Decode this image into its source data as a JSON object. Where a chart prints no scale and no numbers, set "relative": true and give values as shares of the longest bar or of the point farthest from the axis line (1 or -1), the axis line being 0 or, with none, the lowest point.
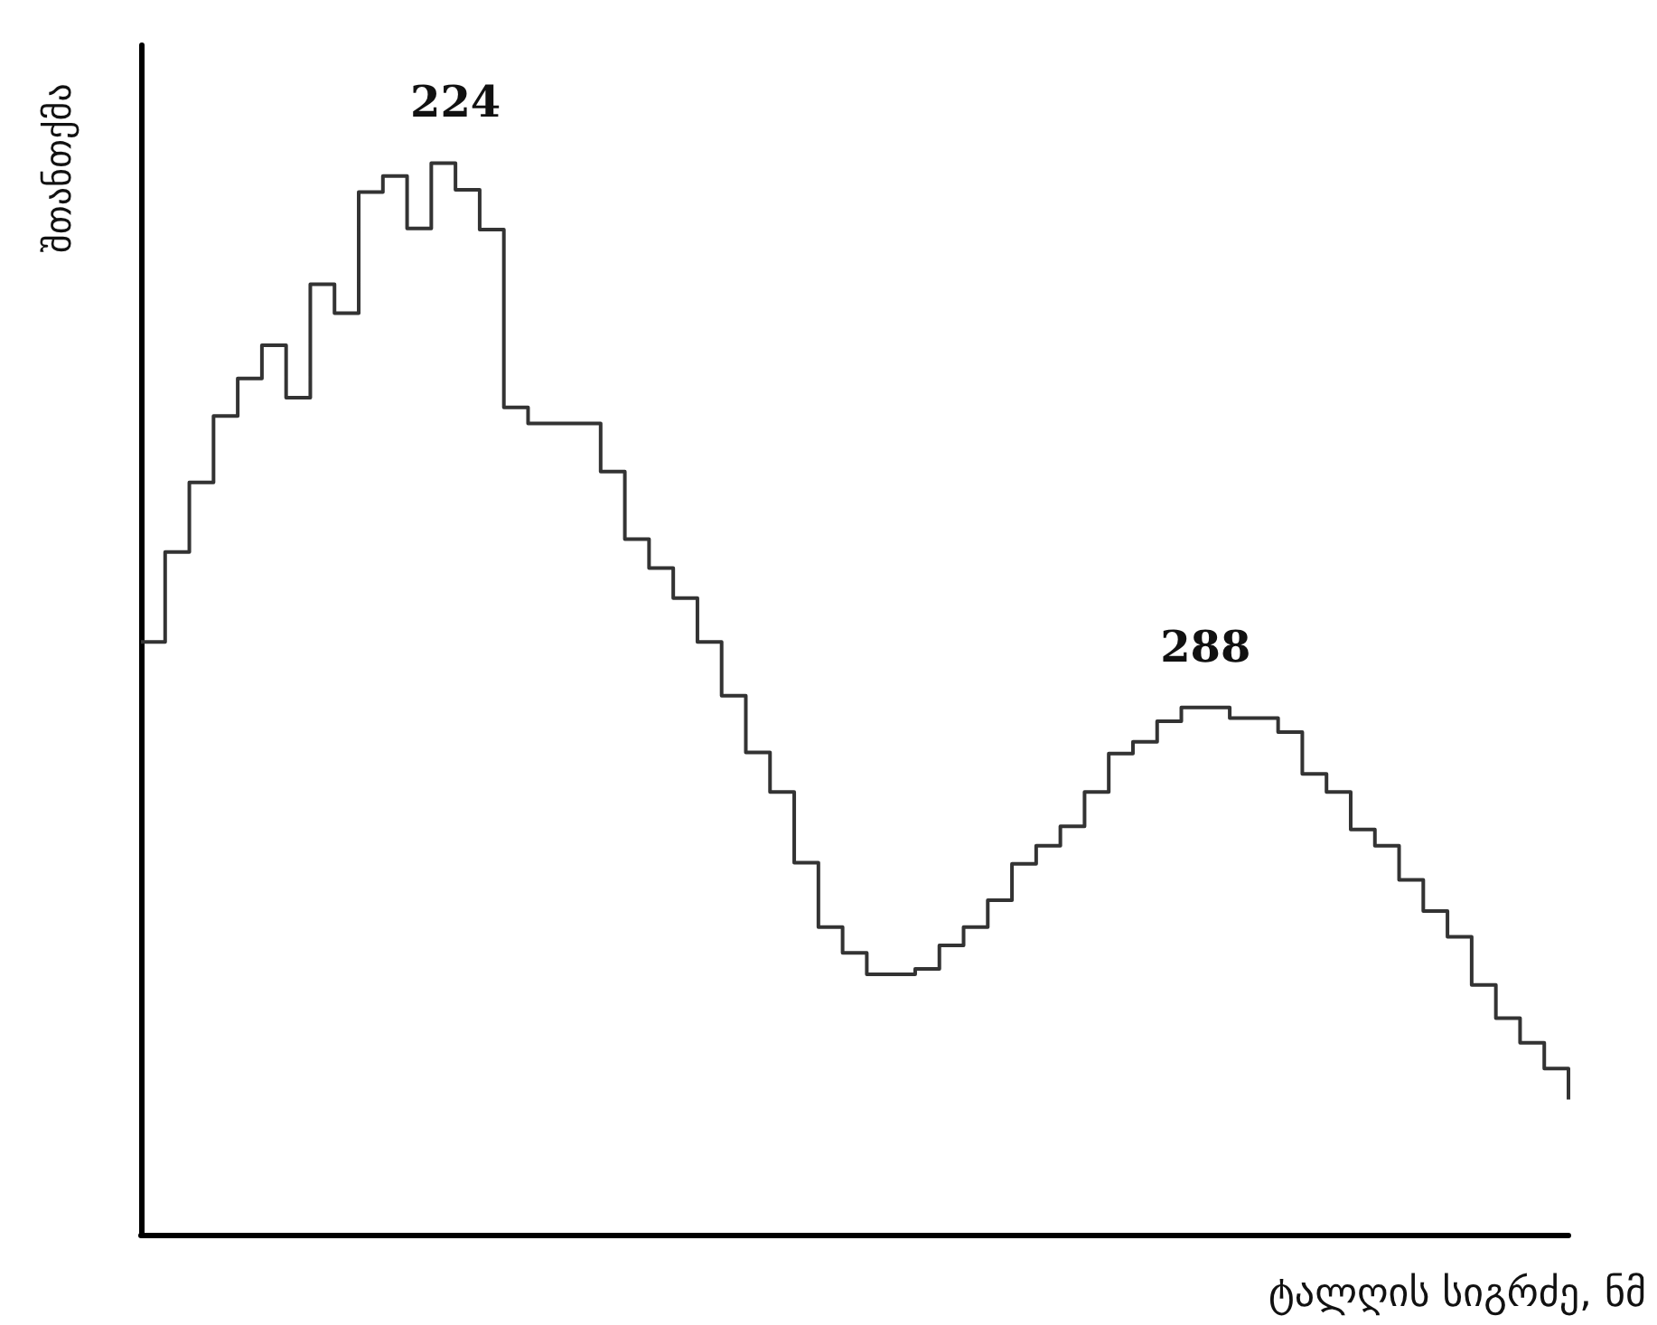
{
  "chart_data": {
    "type": "step",
    "relative": true,
    "xlabel": "ტალღის სიგრძე, ნმ",
    "ylabel": "შთანთქმა",
    "categories": [
      null,
      null,
      null,
      null,
      null,
      null,
      null,
      null,
      null,
      null,
      null,
      null,
      null,
      null,
      null,
      null,
      null,
      null,
      null,
      null,
      null,
      null,
      null,
      null,
      null,
      null,
      null,
      null,
      null,
      null,
      null,
      null,
      null,
      null,
      null,
      null,
      null,
      null,
      null,
      null,
      null,
      null,
      null,
      null,
      null,
      null,
      null,
      null,
      null,
      null,
      null,
      null,
      null,
      null,
      null,
      null,
      null,
      null,
      null,
      null
    ],
    "series": [
      {
        "color": "#333333",
        "values": [
          0.553,
          0.637,
          0.702,
          0.764,
          0.799,
          0.83,
          0.781,
          0.887,
          0.86,
          0.973,
          0.988,
          0.939,
          1,
          0.975,
          0.938,
          0.772,
          0.757,
          0.757,
          0.757,
          0.712,
          0.649,
          0.622,
          0.594,
          0.553,
          0.503,
          0.45,
          0.413,
          0.347,
          0.287,
          0.263,
          0.243,
          0.243,
          0.248,
          0.27,
          0.287,
          0.312,
          0.346,
          0.363,
          0.381,
          0.413,
          0.449,
          0.46,
          0.479,
          0.492,
          0.492,
          0.482,
          0.482,
          0.469,
          0.43,
          0.413,
          0.378,
          0.363,
          0.331,
          0.302,
          0.278,
          0.233,
          0.202,
          0.179,
          0.155,
          0.126
        ]
      }
    ],
    "annotations": [
      {
        "text": "224",
        "y": 1
      },
      {
        "text": "288",
        "y": 0.492
      }
    ],
    "marker": "none",
    "line_style": "solid"
  }
}
